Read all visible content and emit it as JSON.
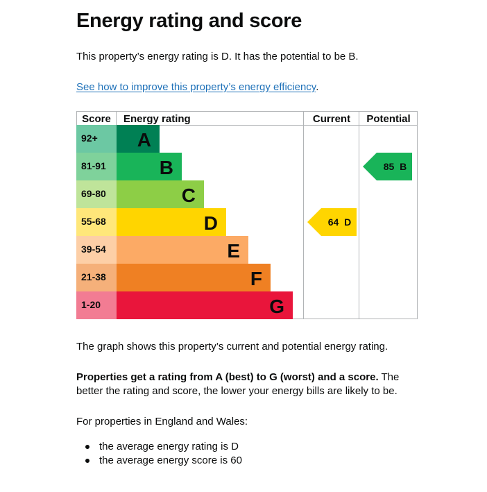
{
  "page": {
    "title": "Energy rating and score",
    "intro": "This property’s energy rating is D. It has the potential to be B.",
    "link_text": "See how to improve this property’s energy efficiency",
    "link_suffix": ".",
    "graph_caption": "The graph shows this property’s current and potential energy rating.",
    "rating_explainer_bold": "Properties get a rating from A (best) to G (worst) and a score.",
    "rating_explainer_rest": " The better the rating and score, the lower your energy bills are likely to be.",
    "regional_intro": "For properties in England and Wales:",
    "bullets": [
      "the average energy rating is D",
      "the average energy score is 60"
    ]
  },
  "chart_data": {
    "type": "table",
    "title": "Energy rating and score",
    "headers": {
      "score": "Score",
      "rating": "Energy rating",
      "current": "Current",
      "potential": "Potential"
    },
    "bands": [
      {
        "letter": "A",
        "range": "92+",
        "color": "#008054",
        "score_color": "#6cc8a3"
      },
      {
        "letter": "B",
        "range": "81-91",
        "color": "#19b459",
        "score_color": "#7fd29b"
      },
      {
        "letter": "C",
        "range": "69-80",
        "color": "#8dce46",
        "score_color": "#bfe49a"
      },
      {
        "letter": "D",
        "range": "55-68",
        "color": "#ffd500",
        "score_color": "#ffe77a"
      },
      {
        "letter": "E",
        "range": "39-54",
        "color": "#fcaa65",
        "score_color": "#fdcfa7"
      },
      {
        "letter": "F",
        "range": "21-38",
        "color": "#ef8023",
        "score_color": "#f5b07a"
      },
      {
        "letter": "G",
        "range": "1-20",
        "color": "#e9153b",
        "score_color": "#f27c93"
      }
    ],
    "current": {
      "score": 64,
      "band": "D",
      "label": "64  D",
      "color": "#ffd500"
    },
    "potential": {
      "score": 85,
      "band": "B",
      "label": "85  B",
      "color": "#19b459"
    }
  }
}
